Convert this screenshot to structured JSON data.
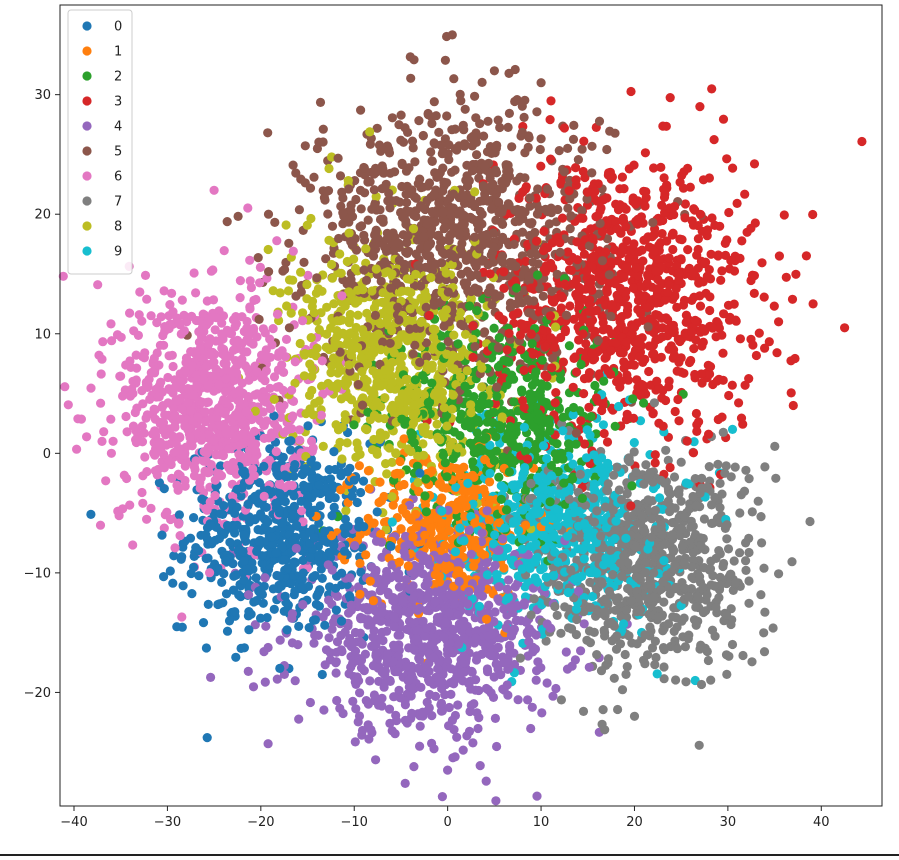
{
  "chart_data": {
    "type": "scatter",
    "title": "",
    "xlabel": "",
    "ylabel": "",
    "xlim": [
      -41.5,
      46.5
    ],
    "ylim": [
      -29.5,
      37.5
    ],
    "x_ticks": [
      -40,
      -30,
      -20,
      -10,
      0,
      10,
      20,
      30,
      40
    ],
    "y_ticks": [
      -20,
      -10,
      0,
      10,
      20,
      30
    ],
    "grid": false,
    "legend_placement": "top-left",
    "marker": "circle",
    "series": [
      {
        "name": "0",
        "color": "#1f77b4",
        "center": [
          -18,
          -7
        ],
        "spread": [
          5,
          4
        ],
        "count": 620
      },
      {
        "name": "1",
        "color": "#ff7f0e",
        "center": [
          0,
          -6
        ],
        "spread": [
          4.5,
          3
        ],
        "count": 380
      },
      {
        "name": "2",
        "color": "#2ca02c",
        "center": [
          6,
          3
        ],
        "spread": [
          6,
          4.5
        ],
        "count": 520
      },
      {
        "name": "3",
        "color": "#d62728",
        "center": [
          19,
          13
        ],
        "spread": [
          7,
          6
        ],
        "count": 950
      },
      {
        "name": "4",
        "color": "#9467bd",
        "center": [
          -2,
          -15
        ],
        "spread": [
          7,
          4
        ],
        "count": 900
      },
      {
        "name": "5",
        "color": "#8c564b",
        "center": [
          1,
          18
        ],
        "spread": [
          8,
          5.5
        ],
        "count": 1000
      },
      {
        "name": "6",
        "color": "#e377c2",
        "center": [
          -25,
          4
        ],
        "spread": [
          5,
          5
        ],
        "count": 850
      },
      {
        "name": "7",
        "color": "#7f7f7f",
        "center": [
          21,
          -9
        ],
        "spread": [
          6,
          4.5
        ],
        "count": 800
      },
      {
        "name": "8",
        "color": "#bcbd22",
        "center": [
          -6,
          8
        ],
        "spread": [
          5.5,
          5
        ],
        "count": 720
      },
      {
        "name": "9",
        "color": "#17becf",
        "center": [
          12,
          -6
        ],
        "spread": [
          5.5,
          4
        ],
        "count": 600
      }
    ],
    "outliers": [
      {
        "series": "5",
        "x": 0.5,
        "y": 35
      },
      {
        "series": "5",
        "x": 5,
        "y": 32
      },
      {
        "series": "5",
        "x": 10,
        "y": 31
      },
      {
        "series": "3",
        "x": 42.5,
        "y": 10.5
      },
      {
        "series": "3",
        "x": 37,
        "y": 4
      },
      {
        "series": "3",
        "x": 27,
        "y": 29
      },
      {
        "series": "9",
        "x": 30.5,
        "y": 2
      },
      {
        "series": "9",
        "x": 26.5,
        "y": -19
      },
      {
        "series": "7",
        "x": 20,
        "y": -22
      },
      {
        "series": "4",
        "x": 0,
        "y": -26.5
      },
      {
        "series": "4",
        "x": -3,
        "y": -24.5
      },
      {
        "series": "6",
        "x": -36,
        "y": 0
      },
      {
        "series": "6",
        "x": -37,
        "y": 1
      },
      {
        "series": "6",
        "x": -25,
        "y": 22
      },
      {
        "series": "0",
        "x": -29,
        "y": -14.5
      },
      {
        "series": "0",
        "x": -17,
        "y": -18
      }
    ]
  }
}
